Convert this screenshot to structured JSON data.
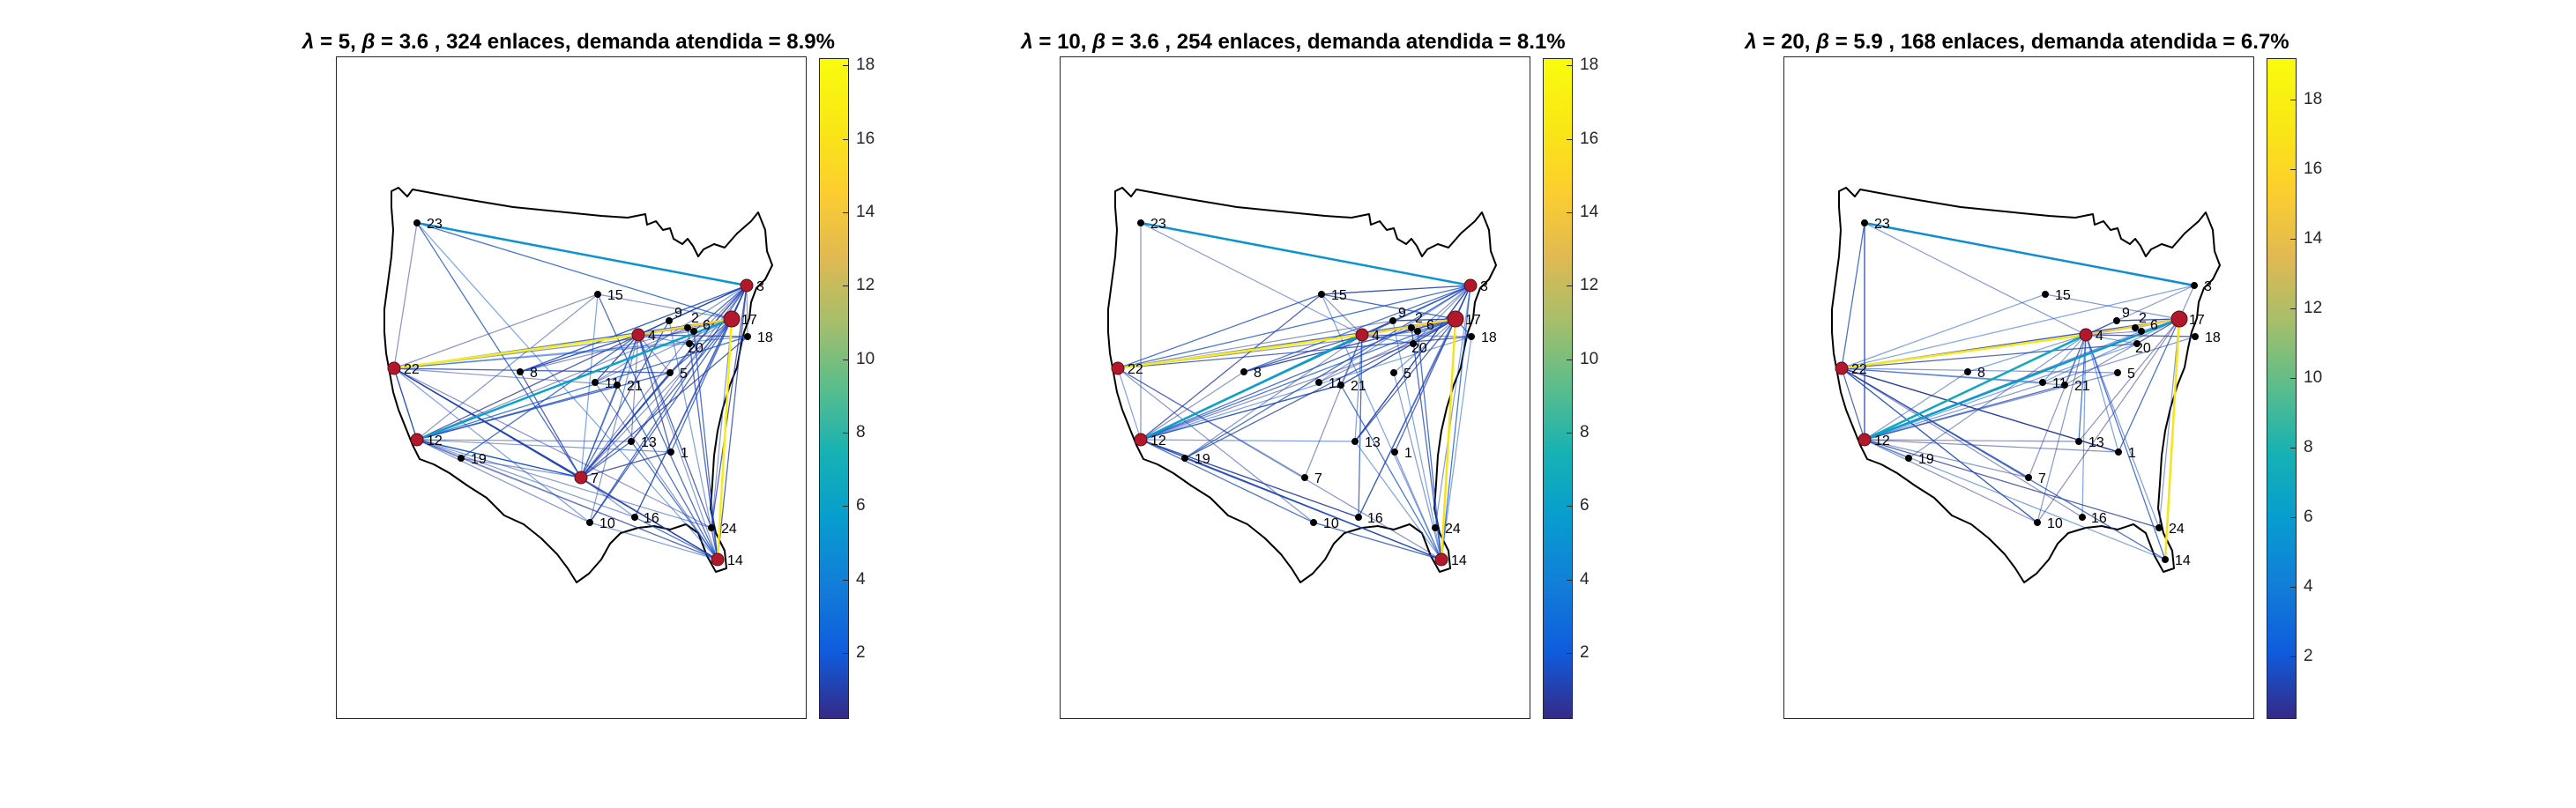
{
  "chart_data": [
    {
      "type": "network-map",
      "title": "λ = 5, β = 3.6 , 324 enlaces, demanda atendida = 8.9%",
      "title_parts": {
        "lambda": "λ",
        "lambda_val": " = 5, ",
        "beta": "β",
        "rest": " = 3.6 , 324 enlaces, demanda atendida = 8.9%"
      },
      "colorbar": {
        "min": 0.2,
        "max": 18.2,
        "ticks": [
          "2",
          "4",
          "6",
          "8",
          "10",
          "12",
          "14",
          "16",
          "18"
        ]
      },
      "hubs": [
        "3",
        "4",
        "7",
        "12",
        "14",
        "17",
        "22"
      ],
      "highlight_edges": [
        [
          "4",
          "22",
          17
        ],
        [
          "17",
          "14",
          17
        ],
        [
          "4",
          "17",
          15
        ],
        [
          "12",
          "17",
          6
        ],
        [
          "23",
          "3",
          5
        ]
      ]
    },
    {
      "type": "network-map",
      "title": "λ = 10, β = 3.6 , 254 enlaces, demanda atendida = 8.1%",
      "title_parts": {
        "lambda": "λ",
        "lambda_val": " = 10, ",
        "beta": "β",
        "rest": " = 3.6 , 254 enlaces, demanda atendida = 8.1%"
      },
      "colorbar": {
        "min": 0.2,
        "max": 18.2,
        "ticks": [
          "2",
          "4",
          "6",
          "8",
          "10",
          "12",
          "14",
          "16",
          "18"
        ]
      },
      "hubs": [
        "3",
        "4",
        "12",
        "14",
        "17",
        "22"
      ],
      "highlight_edges": [
        [
          "4",
          "22",
          17
        ],
        [
          "17",
          "14",
          16
        ],
        [
          "4",
          "17",
          15
        ],
        [
          "12",
          "4",
          6
        ],
        [
          "23",
          "3",
          5
        ]
      ]
    },
    {
      "type": "network-map",
      "title": "λ = 20, β = 5.9 , 168 enlaces, demanda atendida = 6.7%",
      "title_parts": {
        "lambda": "λ",
        "lambda_val": " = 20, ",
        "beta": "β",
        "rest": " = 5.9 , 168 enlaces, demanda atendida = 6.7%"
      },
      "colorbar": {
        "min": 0.2,
        "max": 19.2,
        "ticks": [
          "2",
          "4",
          "6",
          "8",
          "10",
          "12",
          "14",
          "16",
          "18"
        ]
      },
      "hubs": [
        "4",
        "12",
        "17",
        "22"
      ],
      "highlight_edges": [
        [
          "4",
          "22",
          17
        ],
        [
          "17",
          "14",
          17
        ],
        [
          "4",
          "17",
          15
        ],
        [
          "12",
          "4",
          7
        ],
        [
          "23",
          "3",
          5
        ],
        [
          "12",
          "17",
          6
        ]
      ]
    }
  ],
  "nodes": [
    {
      "id": "1",
      "label": "1"
    },
    {
      "id": "2",
      "label": "2"
    },
    {
      "id": "3",
      "label": "3"
    },
    {
      "id": "4",
      "label": "4"
    },
    {
      "id": "5",
      "label": "5"
    },
    {
      "id": "6",
      "label": "6"
    },
    {
      "id": "7",
      "label": "7"
    },
    {
      "id": "8",
      "label": "8"
    },
    {
      "id": "9",
      "label": "9"
    },
    {
      "id": "10",
      "label": "10"
    },
    {
      "id": "11",
      "label": "11"
    },
    {
      "id": "12",
      "label": "12"
    },
    {
      "id": "13",
      "label": "13"
    },
    {
      "id": "14",
      "label": "14"
    },
    {
      "id": "15",
      "label": "15"
    },
    {
      "id": "16",
      "label": "16"
    },
    {
      "id": "17",
      "label": "17"
    },
    {
      "id": "18",
      "label": "18"
    },
    {
      "id": "19",
      "label": "19"
    },
    {
      "id": "20",
      "label": "20"
    },
    {
      "id": "21",
      "label": "21"
    },
    {
      "id": "22",
      "label": "22"
    },
    {
      "id": "23",
      "label": "23"
    },
    {
      "id": "24",
      "label": "24"
    }
  ],
  "colors": {
    "hub": "#b2182b",
    "node": "#000000",
    "map_outline": "#000000"
  }
}
